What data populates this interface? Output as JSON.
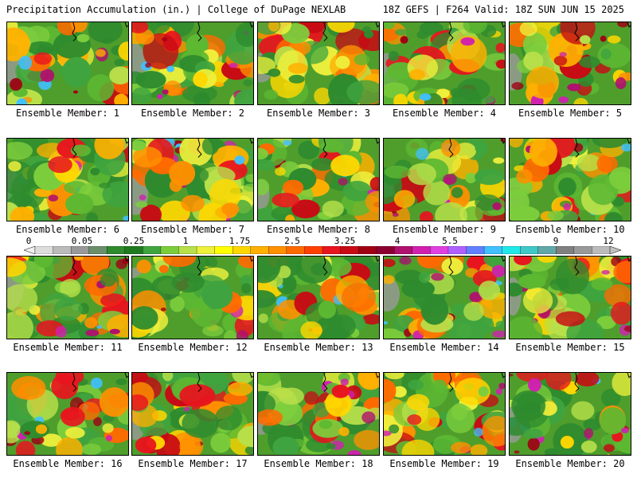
{
  "header": {
    "left": "Precipitation Accumulation (in.) | College of DuPage NEXLAB",
    "right": "18Z GEFS | F264 Valid: 18Z SUN JUN 15 2025"
  },
  "members": [
    {
      "label": "Ensemble Member: 1"
    },
    {
      "label": "Ensemble Member: 2"
    },
    {
      "label": "Ensemble Member: 3"
    },
    {
      "label": "Ensemble Member: 4"
    },
    {
      "label": "Ensemble Member: 5"
    },
    {
      "label": "Ensemble Member: 6"
    },
    {
      "label": "Ensemble Member: 7"
    },
    {
      "label": "Ensemble Member: 8"
    },
    {
      "label": "Ensemble Member: 9"
    },
    {
      "label": "Ensemble Member: 10"
    },
    {
      "label": "Ensemble Member: 11"
    },
    {
      "label": "Ensemble Member: 12"
    },
    {
      "label": "Ensemble Member: 13"
    },
    {
      "label": "Ensemble Member: 14"
    },
    {
      "label": "Ensemble Member: 15"
    },
    {
      "label": "Ensemble Member: 16"
    },
    {
      "label": "Ensemble Member: 17"
    },
    {
      "label": "Ensemble Member: 18"
    },
    {
      "label": "Ensemble Member: 19"
    },
    {
      "label": "Ensemble Member: 20"
    }
  ],
  "colorbar": {
    "labels": [
      "0",
      "0.05",
      "0.25",
      "1",
      "1.75",
      "2.5",
      "3.25",
      "4",
      "5.5",
      "7",
      "9",
      "12"
    ],
    "colors": [
      "#dddddd",
      "#bbbbbb",
      "#999999",
      "#6b8e6b",
      "#2e8b2e",
      "#1f7a1f",
      "#3fa43f",
      "#7ccd3c",
      "#b7e04a",
      "#eef03c",
      "#ffff00",
      "#ffd700",
      "#ffb000",
      "#ff9000",
      "#ff6a00",
      "#ff4000",
      "#e8141e",
      "#c80a14",
      "#a00014",
      "#8b0030",
      "#b0106e",
      "#d020b0",
      "#e040e0",
      "#b060ff",
      "#6080ff",
      "#40c0ff",
      "#20e8e8",
      "#40c8c8",
      "#60a8a8",
      "#808080",
      "#999999",
      "#bbbbbb"
    ]
  }
}
